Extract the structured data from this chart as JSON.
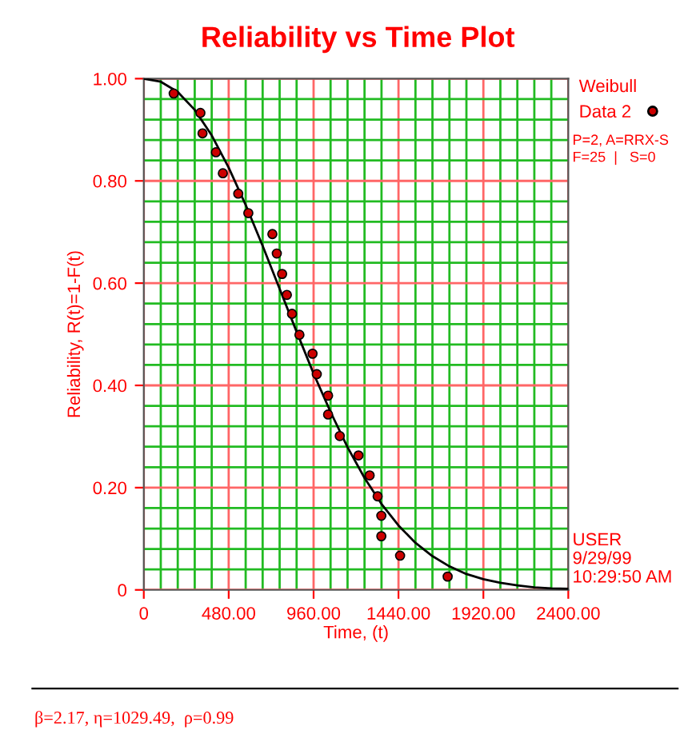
{
  "chart_data": {
    "type": "scatter",
    "title": "Reliability vs Time Plot",
    "xlabel": "Time, (t)",
    "ylabel": "Reliability, R(t)=1-F(t)",
    "legend_title": "Weibull",
    "xlim": [
      0,
      2400
    ],
    "ylim": [
      0,
      1
    ],
    "xticks": [
      0,
      {
        "value": 96,
        "label": null
      },
      {
        "value": 192,
        "label": null
      },
      {
        "value": 288,
        "label": null
      },
      {
        "value": 384,
        "label": null
      },
      {
        "value": 480,
        "label": "480.00"
      },
      {
        "value": 576,
        "label": null
      },
      {
        "value": 672,
        "label": null
      },
      {
        "value": 768,
        "label": null
      },
      {
        "value": 864,
        "label": null
      },
      {
        "value": 960,
        "label": "960.00"
      },
      {
        "value": 1056,
        "label": null
      },
      {
        "value": 1152,
        "label": null
      },
      {
        "value": 1248,
        "label": null
      },
      {
        "value": 1344,
        "label": null
      },
      {
        "value": 1440,
        "label": "1440.00"
      },
      {
        "value": 1536,
        "label": null
      },
      {
        "value": 1632,
        "label": null
      },
      {
        "value": 1728,
        "label": null
      },
      {
        "value": 1824,
        "label": null
      },
      {
        "value": 1920,
        "label": "1920.00"
      },
      {
        "value": 2016,
        "label": null
      },
      {
        "value": 2112,
        "label": null
      },
      {
        "value": 2208,
        "label": null
      },
      {
        "value": 2304,
        "label": null
      },
      {
        "value": 2400,
        "label": "2400.00"
      }
    ],
    "yticks": [
      0,
      {
        "value": 0.04,
        "label": null
      },
      {
        "value": 0.08,
        "label": null
      },
      {
        "value": 0.12,
        "label": null
      },
      {
        "value": 0.16,
        "label": null
      },
      {
        "value": 0.2,
        "label": "0.20"
      },
      {
        "value": 0.24,
        "label": null
      },
      {
        "value": 0.28,
        "label": null
      },
      {
        "value": 0.32,
        "label": null
      },
      {
        "value": 0.36,
        "label": null
      },
      {
        "value": 0.4,
        "label": "0.40"
      },
      {
        "value": 0.44,
        "label": null
      },
      {
        "value": 0.48,
        "label": null
      },
      {
        "value": 0.52,
        "label": null
      },
      {
        "value": 0.56,
        "label": null
      },
      {
        "value": 0.6,
        "label": "0.60"
      },
      {
        "value": 0.64,
        "label": null
      },
      {
        "value": 0.68,
        "label": null
      },
      {
        "value": 0.72,
        "label": null
      },
      {
        "value": 0.76,
        "label": null
      },
      {
        "value": 0.8,
        "label": "0.80"
      },
      {
        "value": 0.84,
        "label": null
      },
      {
        "value": 0.88,
        "label": null
      },
      {
        "value": 0.92,
        "label": null
      },
      {
        "value": 0.96,
        "label": null
      },
      {
        "value": 1,
        "label": "1.00"
      }
    ],
    "grid": true,
    "legend": "top right",
    "series": [
      {
        "type": "line",
        "color": "#000000",
        "line_style": "solid",
        "x": [
          0,
          96,
          192,
          288,
          384,
          480,
          576,
          672,
          768,
          864,
          960,
          1056,
          1152,
          1248,
          1344,
          1440,
          1536,
          1632,
          1728,
          1824,
          1920,
          2016,
          2112,
          2208,
          2304,
          2400
        ],
        "values": [
          1.0,
          0.994,
          0.974,
          0.939,
          0.889,
          0.826,
          0.753,
          0.673,
          0.589,
          0.505,
          0.423,
          0.348,
          0.279,
          0.219,
          0.168,
          0.126,
          0.092,
          0.066,
          0.046,
          0.031,
          0.021,
          0.014,
          0.009,
          0.005,
          0.003,
          0.002
        ]
      },
      {
        "name": "Data 2",
        "color": "#cc0000",
        "marker": "circle",
        "x": [
          169,
          320,
          332,
          408,
          447,
          534,
          591,
          727,
          752,
          782,
          809,
          838,
          880,
          954,
          978,
          1042,
          1042,
          1108,
          1214,
          1277,
          1322,
          1343,
          1343,
          1449,
          1718
        ],
        "values": [
          0.971,
          0.933,
          0.893,
          0.856,
          0.815,
          0.775,
          0.737,
          0.696,
          0.658,
          0.618,
          0.577,
          0.54,
          0.499,
          0.462,
          0.422,
          0.38,
          0.343,
          0.301,
          0.263,
          0.224,
          0.183,
          0.145,
          0.105,
          0.067,
          0.026
        ]
      }
    ],
    "annotations": [
      "P=2, A=RRX-S",
      "F=25  |   S=0",
      "USER",
      "9/29/99",
      "10:29:50 AM",
      "β=2.17, η=1029.49,  ρ=0.99"
    ]
  }
}
